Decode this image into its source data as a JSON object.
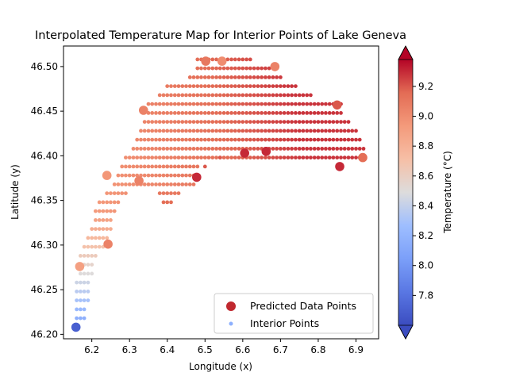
{
  "chart_data": {
    "type": "scatter",
    "title": "Interpolated Temperature Map for Interior Points of Lake Geneva",
    "xlabel": "Longitude (x)",
    "ylabel": "Latitude (y)",
    "xlim": [
      6.125,
      6.96
    ],
    "ylim": [
      46.195,
      46.523
    ],
    "x_ticks": [
      "6.2",
      "6.3",
      "6.4",
      "6.5",
      "6.6",
      "6.7",
      "6.8",
      "6.9"
    ],
    "x_tick_values": [
      6.2,
      6.3,
      6.4,
      6.5,
      6.6,
      6.7,
      6.8,
      6.9
    ],
    "y_ticks": [
      "46.20",
      "46.25",
      "46.30",
      "46.35",
      "46.40",
      "46.45",
      "46.50"
    ],
    "y_tick_values": [
      46.2,
      46.25,
      46.3,
      46.35,
      46.4,
      46.45,
      46.5
    ],
    "grid": false,
    "legend_position": "lower-right",
    "legend": {
      "predicted_label": "Predicted Data Points",
      "interior_label": "Interior Points"
    },
    "colorbar": {
      "label": "Temperature (°C)",
      "min": 7.6,
      "max": 9.38,
      "ticks": [
        "7.8",
        "8.0",
        "8.2",
        "8.4",
        "8.6",
        "8.8",
        "9.0",
        "9.2"
      ],
      "tick_values": [
        7.8,
        8.0,
        8.2,
        8.4,
        8.6,
        8.8,
        9.0,
        9.2
      ],
      "extend": "both",
      "colormap": "coolwarm"
    },
    "predicted_points": [
      {
        "x": 6.158,
        "y": 46.208,
        "t": 7.7
      },
      {
        "x": 6.168,
        "y": 46.276,
        "t": 8.9
      },
      {
        "x": 6.243,
        "y": 46.301,
        "t": 9.05
      },
      {
        "x": 6.24,
        "y": 46.378,
        "t": 8.95
      },
      {
        "x": 6.325,
        "y": 46.372,
        "t": 9.05
      },
      {
        "x": 6.337,
        "y": 46.451,
        "t": 9.05
      },
      {
        "x": 6.478,
        "y": 46.376,
        "t": 9.3
      },
      {
        "x": 6.502,
        "y": 46.506,
        "t": 9.1
      },
      {
        "x": 6.545,
        "y": 46.506,
        "t": 9.0
      },
      {
        "x": 6.605,
        "y": 46.403,
        "t": 9.3
      },
      {
        "x": 6.662,
        "y": 46.405,
        "t": 9.3
      },
      {
        "x": 6.685,
        "y": 46.5,
        "t": 9.05
      },
      {
        "x": 6.85,
        "y": 46.457,
        "t": 9.2
      },
      {
        "x": 6.857,
        "y": 46.388,
        "t": 9.3
      },
      {
        "x": 6.918,
        "y": 46.398,
        "t": 9.15
      }
    ],
    "interior_rows": [
      {
        "y": 46.508,
        "x_min": 6.48,
        "x_max": 6.62
      },
      {
        "y": 46.498,
        "x_min": 6.48,
        "x_max": 6.68
      },
      {
        "y": 46.488,
        "x_min": 6.46,
        "x_max": 6.7
      },
      {
        "y": 46.478,
        "x_min": 6.4,
        "x_max": 6.74
      },
      {
        "y": 46.468,
        "x_min": 6.38,
        "x_max": 6.78
      },
      {
        "y": 46.458,
        "x_min": 6.35,
        "x_max": 6.86
      },
      {
        "y": 46.448,
        "x_min": 6.35,
        "x_max": 6.86
      },
      {
        "y": 46.438,
        "x_min": 6.34,
        "x_max": 6.88
      },
      {
        "y": 46.428,
        "x_min": 6.33,
        "x_max": 6.9
      },
      {
        "y": 46.418,
        "x_min": 6.32,
        "x_max": 6.91
      },
      {
        "y": 46.408,
        "x_min": 6.31,
        "x_max": 6.92
      },
      {
        "y": 46.398,
        "x_min": 6.29,
        "x_max": 6.91
      },
      {
        "y": 46.388,
        "x_min": 6.28,
        "x_max": 6.48
      },
      {
        "y": 46.378,
        "x_min": 6.27,
        "x_max": 6.47
      },
      {
        "y": 46.368,
        "x_min": 6.26,
        "x_max": 6.47
      },
      {
        "y": 46.358,
        "x_min": 6.24,
        "x_max": 6.29
      },
      {
        "y": 46.348,
        "x_min": 6.22,
        "x_max": 6.27
      },
      {
        "y": 46.338,
        "x_min": 6.21,
        "x_max": 6.26
      },
      {
        "y": 46.328,
        "x_min": 6.21,
        "x_max": 6.25
      },
      {
        "y": 46.318,
        "x_min": 6.2,
        "x_max": 6.25
      },
      {
        "y": 46.308,
        "x_min": 6.19,
        "x_max": 6.24
      },
      {
        "y": 46.298,
        "x_min": 6.18,
        "x_max": 6.23
      },
      {
        "y": 46.288,
        "x_min": 6.17,
        "x_max": 6.21
      },
      {
        "y": 46.278,
        "x_min": 6.17,
        "x_max": 6.2
      },
      {
        "y": 46.268,
        "x_min": 6.17,
        "x_max": 6.2
      },
      {
        "y": 46.258,
        "x_min": 6.16,
        "x_max": 6.19
      },
      {
        "y": 46.248,
        "x_min": 6.16,
        "x_max": 6.19
      },
      {
        "y": 46.238,
        "x_min": 6.16,
        "x_max": 6.19
      },
      {
        "y": 46.228,
        "x_min": 6.16,
        "x_max": 6.18
      },
      {
        "y": 46.218,
        "x_min": 6.16,
        "x_max": 6.18
      }
    ],
    "interior_extra": [
      {
        "x": 6.4,
        "y": 46.388,
        "t": 9.05
      },
      {
        "x": 6.38,
        "y": 46.358,
        "t": 9.1
      },
      {
        "x": 6.39,
        "y": 46.358,
        "t": 9.1
      },
      {
        "x": 6.4,
        "y": 46.358,
        "t": 9.1
      },
      {
        "x": 6.41,
        "y": 46.358,
        "t": 9.1
      },
      {
        "x": 6.42,
        "y": 46.358,
        "t": 9.1
      },
      {
        "x": 6.43,
        "y": 46.358,
        "t": 9.1
      },
      {
        "x": 6.39,
        "y": 46.348,
        "t": 9.15
      },
      {
        "x": 6.4,
        "y": 46.348,
        "t": 9.15
      },
      {
        "x": 6.41,
        "y": 46.348,
        "t": 9.15
      },
      {
        "x": 6.54,
        "y": 46.398,
        "t": 9.2
      },
      {
        "x": 6.5,
        "y": 46.388,
        "t": 9.2
      }
    ]
  }
}
